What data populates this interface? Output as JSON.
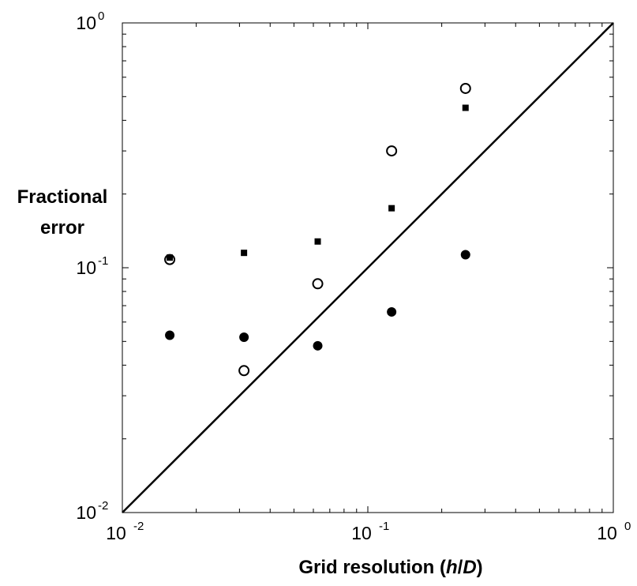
{
  "chart_data": {
    "type": "scatter",
    "title": "",
    "xlabel": {
      "main": "Grid resolution (",
      "italic_h": "h",
      "slash": "/",
      "italic_D": "D",
      "close": ")"
    },
    "ylabel": [
      "Fractional",
      "error"
    ],
    "x_scale": "log",
    "y_scale": "log",
    "xlim": [
      0.01,
      1
    ],
    "ylim": [
      0.01,
      1
    ],
    "x_ticks": [
      {
        "value": 0.01,
        "base": "10",
        "exp": "-2"
      },
      {
        "value": 0.1,
        "base": "10",
        "exp": "-1"
      },
      {
        "value": 1,
        "base": "10",
        "exp": "0"
      }
    ],
    "y_ticks": [
      {
        "value": 0.01,
        "base": "10",
        "exp": "-2"
      },
      {
        "value": 0.1,
        "base": "10",
        "exp": "-1"
      },
      {
        "value": 1,
        "base": "10",
        "exp": "0"
      }
    ],
    "grid": false,
    "reference_line": {
      "x": [
        0.01,
        1
      ],
      "y": [
        0.01,
        1
      ],
      "color": "#000000"
    },
    "series": [
      {
        "marker": "open-circle",
        "color": "#000000",
        "x": [
          0.0156,
          0.0313,
          0.0625,
          0.125,
          0.25
        ],
        "y": [
          0.108,
          0.038,
          0.086,
          0.3,
          0.54
        ]
      },
      {
        "marker": "filled-square",
        "color": "#000000",
        "x": [
          0.0156,
          0.0313,
          0.0625,
          0.125,
          0.25
        ],
        "y": [
          0.11,
          0.115,
          0.128,
          0.175,
          0.45
        ]
      },
      {
        "marker": "filled-circle",
        "color": "#000000",
        "x": [
          0.0156,
          0.0313,
          0.0625,
          0.125,
          0.25
        ],
        "y": [
          0.053,
          0.052,
          0.048,
          0.066,
          0.113
        ]
      }
    ]
  }
}
